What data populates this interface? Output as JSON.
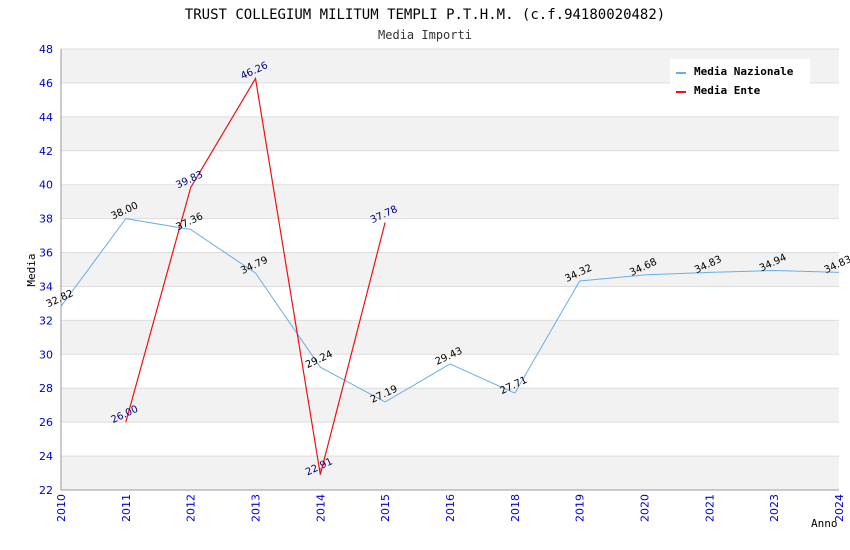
{
  "chart_data": {
    "type": "line",
    "title": "TRUST COLLEGIUM MILITUM TEMPLI P.T.H.M. (c.f.94180020482)",
    "subtitle": "Media Importi",
    "xlabel": "Anno",
    "ylabel": "Media",
    "categories": [
      "2010",
      "2011",
      "2012",
      "2013",
      "2014",
      "2015",
      "2016",
      "2018",
      "2019",
      "2020",
      "2021",
      "2023",
      "2024"
    ],
    "ylim": [
      22,
      48
    ],
    "yticks": [
      "22",
      "24",
      "26",
      "28",
      "30",
      "32",
      "34",
      "36",
      "38",
      "40",
      "42",
      "44",
      "46",
      "48"
    ],
    "grid": "horizontal, alternating bands",
    "legend_position": "top-right",
    "series": [
      {
        "name": "Media Nazionale",
        "color": "#6aaee8",
        "label_color": "#000000",
        "values": [
          32.82,
          38.0,
          37.36,
          34.79,
          29.24,
          27.19,
          29.43,
          27.71,
          34.32,
          34.68,
          34.83,
          34.94,
          34.83
        ],
        "labels": [
          "32.82",
          "38.00",
          "37.36",
          "34.79",
          "29.24",
          "27.19",
          "29.43",
          "27.71",
          "34.32",
          "34.68",
          "34.83",
          "34.94",
          "34.83"
        ]
      },
      {
        "name": "Media Ente",
        "color": "#ee1111",
        "label_color": "#000080",
        "values": [
          null,
          26.0,
          39.83,
          46.26,
          22.91,
          37.78,
          null,
          null,
          null,
          null,
          null,
          null,
          null
        ],
        "labels": [
          null,
          "26.00",
          "39.83",
          "46.26",
          "22.91",
          "37.78",
          null,
          null,
          null,
          null,
          null,
          null,
          null
        ]
      }
    ]
  }
}
